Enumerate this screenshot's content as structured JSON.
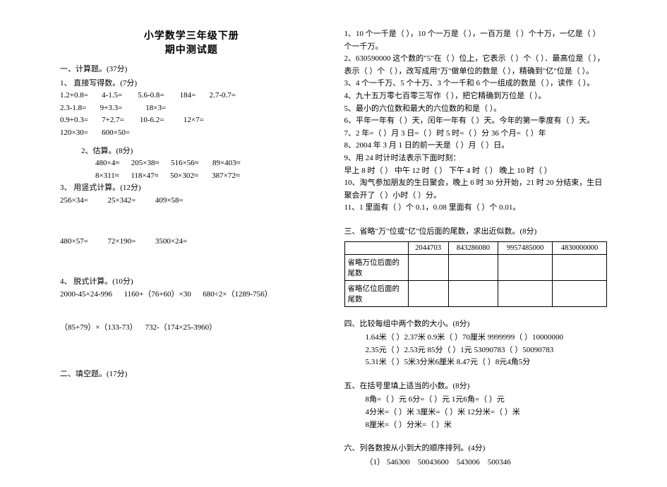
{
  "title": {
    "line1": "小学数学三年级下册",
    "line2": "期中测试题"
  },
  "left": {
    "s1": "一、计算题。(37分)",
    "s1_1": "1、 直接写得数。(7分)",
    "r1": "1.2+0.8=       4-1.5=        5.6-0.8=        184=       2.7-0.7=",
    "r2": "2.3-1.8=       9+3.3=            18×3=",
    "r3": "0.9+0.3=       7+2.7=        10-6.2=          12×7=",
    "r4": "120×30=       600×50=",
    "s1_2": "2、估算。(8分)",
    "e1": "480×4≈      205×38≈      516×56≈       89×403≈",
    "e2": "8×311≈      118×47≈      50×302≈       387×72≈",
    "s1_3": "3、 用竖式计算。(12分)",
    "v1": "256×34=          25×342=          409×58=",
    "v2": "480×57=          72×190=          3500×24=",
    "s1_4": "4、 脱式计算。(10分)",
    "d1": "2000-45×24-996      1160+（76+60）×30      680÷2×（1289-756）",
    "d2": "（85+79）×（133-73）    732-（174×25-3960）",
    "s2": "二、填空题。(17分)"
  },
  "right": {
    "fill": [
      "1、10 个一千是（   ），10 个一万是（   ），一百万是（   ）个十万，一亿是（   ）个一千万。",
      "2、630590000 这个数的\"5\"在（  ）位上，它表示（  ）个（  ）．最高位是（  ），表示（  ）个（  ），改写成用\"万\"做单位的数是（   ），精确到\"亿\"位是（   ）。",
      "3、4 个一千万、5 个十万、3 个一千和 6 个一组成的数是（        ），读作（            ）。",
      "4、九十五万零七百零三写作（        ），把它精确到万位是（     ）。",
      "5、最小的六位数和最大的六位数的和是（       ）。",
      "6、平年一年有（   ）天，闰年一年有（   ）天。今年的第一季度有（   ）天。",
      "7、2 年=（   ）月    3 日=（   ）时    5 时=（   ）分    36 个月=（   ）年",
      "8、2004 年 3 月 1 日的前一天是（   ）月（   ）日。",
      "9、用 24 时计时法表示下面时刻：",
      "早上 8 时（    ）   中午 12 时（    ）   下午 4 时（    ）   晚上 10 时（    ）",
      "10、淘气参加朋友的生日聚会，晚上 6 时 30 分开始，21 时 20 分结束，生日聚会开了（   ）小时（   ）分。",
      "11、1 里面有（   ）个 0.1，0.08 里面有（   ）个 0.01。"
    ],
    "s3": "三、省略\"万\"位或\"亿\"位后面的尾数，求出近似数。(8分)",
    "table": {
      "cols": [
        "",
        "2044703",
        "843286080",
        "9957485000",
        "4830000000"
      ],
      "rowA": "省略万位后面的尾数",
      "rowB": "省略亿位后面的尾数"
    },
    "s4": "四、比较每组中两个数的大小。(8分)",
    "cmp": [
      "1.64米（   ）2.37米    0.9米（   ）70厘米    9999999（   ）10000000",
      "2.35元（   ）2.53元    85分（   ）1元       53090783（   ）50090783",
      "5.31米（   ）5米3分米6厘米    8.47元（   ）8元4角5分"
    ],
    "s5": "五、在括号里填上适当的小数。(8分)",
    "fd": [
      "8角=（   ）元    6分=（   ）元    1元6角=（   ）元",
      "4分米=（   ）米   3厘米=（  ）米   12分米=（   ）米",
      "8厘米=（   ）分米=（   ）米"
    ],
    "s6": "六、列各数按从小到大的顺序排列。(4分)",
    "ord": "（1） 546300    50043600    543006    500346"
  }
}
